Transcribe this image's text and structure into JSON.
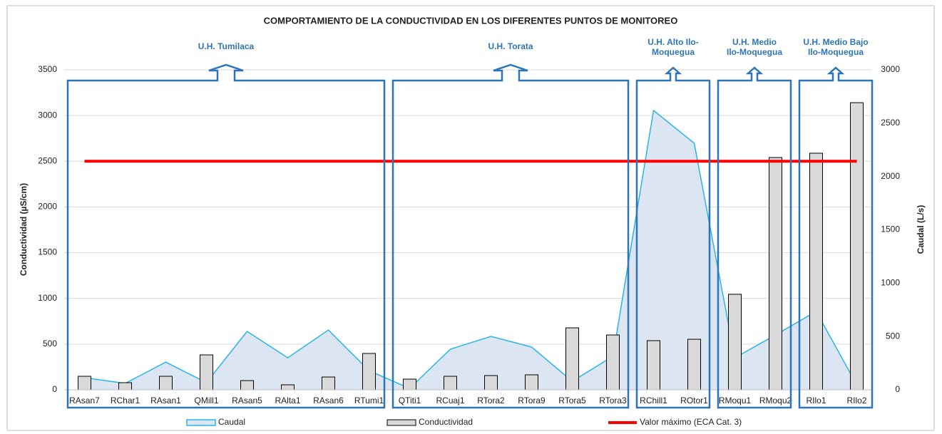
{
  "chart_data": {
    "type": "bar",
    "title": "COMPORTAMIENTO DE LA CONDUCTIVIDAD  EN LOS DIFERENTES PUNTOS DE MONITOREO",
    "y_label": "Conductividad  (µS/cm)",
    "y2_label": "Caudal (L/s)",
    "categories": [
      "RAsan7",
      "RChar1",
      "RAsan1",
      "QMill1",
      "RAsan5",
      "RAlta1",
      "RAsan6",
      "RTumi1",
      "QTiti1",
      "RCuaj1",
      "RTora2",
      "RTora9",
      "RTora5",
      "RTora3",
      "RChill1",
      "ROtor1",
      "RMoqu1",
      "RMoqu2",
      "RIlo1",
      "RIlo2"
    ],
    "series": [
      {
        "name": "Caudal",
        "type": "area",
        "axis": "y2",
        "color": "#29b5e8",
        "fill": "#dce6f2",
        "values": [
          114,
          60,
          260,
          67,
          548,
          300,
          561,
          180,
          13,
          381,
          501,
          401,
          80,
          314,
          2619,
          2312,
          300,
          514,
          735,
          47
        ]
      },
      {
        "name": "Conductividad",
        "type": "bar",
        "color": "#d9d9d9",
        "values": [
          148,
          78,
          148,
          382,
          101,
          55,
          140,
          398,
          117,
          148,
          156,
          164,
          678,
          600,
          538,
          553,
          1045,
          2541,
          2588,
          3141
        ]
      },
      {
        "name": "Valor máximo (ECA Cat. 3)",
        "type": "line",
        "color": "#ff0000",
        "values": [
          2500,
          2500,
          2500,
          2500,
          2500,
          2500,
          2500,
          2500,
          2500,
          2500,
          2500,
          2500,
          2500,
          2500,
          2500,
          2500,
          2500,
          2500,
          2500,
          2500
        ]
      }
    ],
    "ylim": [
      0,
      3500
    ],
    "yticks": [
      0,
      500,
      1000,
      1500,
      2000,
      2500,
      3000,
      3500
    ],
    "y2lim": [
      0,
      3000
    ],
    "y2ticks": [
      0,
      500,
      1000,
      1500,
      2000,
      2500,
      3000
    ],
    "grid": true,
    "legend": "bottom",
    "annotations": [
      {
        "lines": [
          "U.H. Tumilaca"
        ]
      },
      {
        "lines": [
          "U.H. Torata"
        ]
      },
      {
        "lines": [
          "U.H. Alto Ilo-",
          "Moquegua"
        ]
      },
      {
        "lines": [
          "U.H. Medio",
          "Ilo-Moquegua"
        ]
      },
      {
        "lines": [
          "U.H. Medio Bajo",
          "Ilo-Moquegua"
        ]
      }
    ]
  }
}
